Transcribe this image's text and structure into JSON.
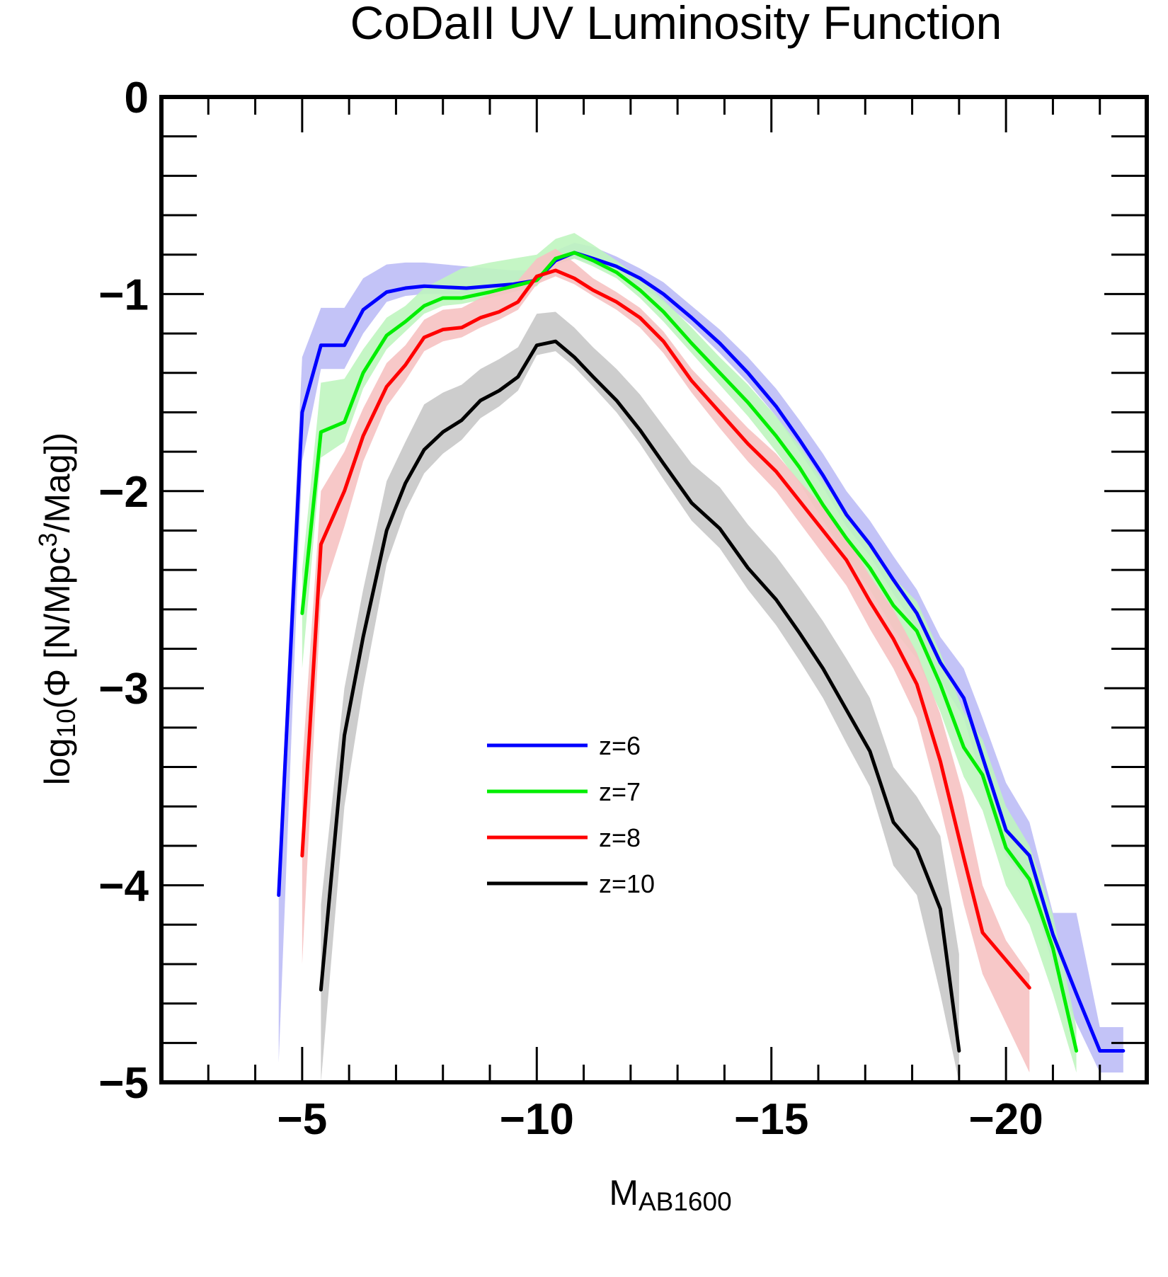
{
  "chart_data": {
    "type": "line",
    "title": "CoDaII UV Luminosity Function",
    "xlabel": {
      "main": "M",
      "sub": "AB1600"
    },
    "ylabel": {
      "pre": "log",
      "sub": "10",
      "mid": "(Φ [N/Mpc",
      "sup": "3",
      "post": "/Mag])"
    },
    "xlim": [
      -2,
      -23
    ],
    "ylim": [
      -5,
      0
    ],
    "xticks": [
      -5,
      -10,
      -15,
      -20
    ],
    "xtick_labels": [
      "−5",
      "−10",
      "−15",
      "−20"
    ],
    "yticks": [
      0,
      -1,
      -2,
      -3,
      -4,
      -5
    ],
    "ytick_labels": [
      "0",
      "−1",
      "−2",
      "−3",
      "−4",
      "−5"
    ],
    "series": [
      {
        "name": "z=6",
        "color": "#0000ff",
        "band_color": "#bcbcf6",
        "x": [
          -4.5,
          -5.0,
          -5.4,
          -5.9,
          -6.3,
          -6.8,
          -7.2,
          -7.6,
          -8.5,
          -9.5,
          -10.0,
          -10.4,
          -10.8,
          -11.2,
          -11.7,
          -12.2,
          -12.7,
          -13.3,
          -13.9,
          -14.5,
          -15.1,
          -15.6,
          -16.1,
          -16.6,
          -17.1,
          -17.6,
          -18.1,
          -18.6,
          -19.1,
          -19.5,
          -20.0,
          -20.5,
          -21.0,
          -21.5,
          -22.0,
          -22.5
        ],
        "y": [
          -4.05,
          -1.6,
          -1.26,
          -1.26,
          -1.08,
          -0.99,
          -0.97,
          -0.96,
          -0.97,
          -0.95,
          -0.93,
          -0.83,
          -0.79,
          -0.82,
          -0.86,
          -0.92,
          -1.0,
          -1.12,
          -1.25,
          -1.4,
          -1.57,
          -1.74,
          -1.92,
          -2.12,
          -2.27,
          -2.45,
          -2.62,
          -2.87,
          -3.05,
          -3.35,
          -3.72,
          -3.85,
          -4.25,
          -4.55,
          -4.84,
          -4.84
        ],
        "lower": [
          -4.9,
          -1.85,
          -1.38,
          -1.38,
          -1.2,
          -1.04,
          -1.01,
          -1.0,
          -1.0,
          -0.98,
          -0.95,
          -0.85,
          -0.82,
          -0.85,
          -0.9,
          -0.96,
          -1.04,
          -1.16,
          -1.3,
          -1.45,
          -1.62,
          -1.8,
          -1.98,
          -2.18,
          -2.33,
          -2.52,
          -2.7,
          -2.96,
          -3.15,
          -3.48,
          -3.85,
          -4.0,
          -4.4,
          -4.7,
          -4.95,
          -4.95
        ],
        "upper": [
          -3.9,
          -1.32,
          -1.07,
          -1.07,
          -0.92,
          -0.85,
          -0.84,
          -0.84,
          -0.86,
          -0.88,
          -0.88,
          -0.78,
          -0.74,
          -0.76,
          -0.81,
          -0.87,
          -0.94,
          -1.06,
          -1.18,
          -1.32,
          -1.48,
          -1.64,
          -1.81,
          -2.0,
          -2.15,
          -2.33,
          -2.5,
          -2.74,
          -2.9,
          -3.15,
          -3.48,
          -3.68,
          -4.14,
          -4.14,
          -4.72,
          -4.72
        ]
      },
      {
        "name": "z=7",
        "color": "#00ee00",
        "band_color": "#bff5bf",
        "x": [
          -5.0,
          -5.4,
          -5.9,
          -6.3,
          -6.8,
          -7.2,
          -7.6,
          -8.0,
          -8.4,
          -9.0,
          -9.5,
          -10.0,
          -10.4,
          -10.8,
          -11.2,
          -11.7,
          -12.2,
          -12.7,
          -13.3,
          -13.9,
          -14.5,
          -15.1,
          -15.6,
          -16.1,
          -16.6,
          -17.1,
          -17.6,
          -18.1,
          -18.6,
          -19.1,
          -19.5,
          -20.0,
          -20.5,
          -21.0,
          -21.5
        ],
        "y": [
          -2.62,
          -1.7,
          -1.65,
          -1.4,
          -1.21,
          -1.14,
          -1.06,
          -1.02,
          -1.02,
          -0.99,
          -0.96,
          -0.93,
          -0.82,
          -0.79,
          -0.83,
          -0.89,
          -0.98,
          -1.09,
          -1.25,
          -1.4,
          -1.55,
          -1.72,
          -1.88,
          -2.07,
          -2.24,
          -2.39,
          -2.58,
          -2.71,
          -2.98,
          -3.3,
          -3.44,
          -3.81,
          -3.97,
          -4.32,
          -4.84
        ],
        "lower": [
          -2.9,
          -1.83,
          -1.75,
          -1.48,
          -1.28,
          -1.19,
          -1.1,
          -1.06,
          -1.05,
          -1.02,
          -0.99,
          -0.96,
          -0.85,
          -0.82,
          -0.86,
          -0.92,
          -1.02,
          -1.14,
          -1.3,
          -1.46,
          -1.62,
          -1.8,
          -1.96,
          -2.15,
          -2.33,
          -2.5,
          -2.7,
          -2.85,
          -3.12,
          -3.45,
          -3.62,
          -4.0,
          -4.2,
          -4.55,
          -4.95
        ],
        "upper": [
          -2.4,
          -1.45,
          -1.43,
          -1.28,
          -1.12,
          -1.06,
          -0.97,
          -0.92,
          -0.87,
          -0.84,
          -0.82,
          -0.8,
          -0.72,
          -0.69,
          -0.75,
          -0.83,
          -0.92,
          -1.03,
          -1.17,
          -1.32,
          -1.46,
          -1.62,
          -1.77,
          -1.95,
          -2.12,
          -2.26,
          -2.44,
          -2.56,
          -2.82,
          -3.12,
          -3.26,
          -3.6,
          -3.8,
          -4.15,
          -4.72
        ]
      },
      {
        "name": "z=8",
        "color": "#ff0000",
        "band_color": "#f6c2c2",
        "x": [
          -5.0,
          -5.4,
          -5.9,
          -6.3,
          -6.8,
          -7.2,
          -7.6,
          -8.0,
          -8.4,
          -8.8,
          -9.2,
          -9.6,
          -10.0,
          -10.4,
          -10.8,
          -11.2,
          -11.7,
          -12.2,
          -12.7,
          -13.3,
          -13.9,
          -14.5,
          -15.1,
          -15.6,
          -16.1,
          -16.6,
          -17.1,
          -17.6,
          -18.1,
          -18.6,
          -19.1,
          -19.5,
          -20.0,
          -20.5
        ],
        "y": [
          -3.85,
          -2.27,
          -2.0,
          -1.72,
          -1.47,
          -1.36,
          -1.22,
          -1.18,
          -1.17,
          -1.12,
          -1.09,
          -1.04,
          -0.91,
          -0.88,
          -0.92,
          -0.98,
          -1.04,
          -1.12,
          -1.24,
          -1.44,
          -1.6,
          -1.76,
          -1.9,
          -2.05,
          -2.2,
          -2.35,
          -2.56,
          -2.75,
          -2.98,
          -3.37,
          -3.86,
          -4.24,
          -4.38,
          -4.52
        ],
        "lower": [
          -4.4,
          -2.55,
          -2.18,
          -1.85,
          -1.57,
          -1.44,
          -1.29,
          -1.24,
          -1.22,
          -1.17,
          -1.13,
          -1.08,
          -0.95,
          -0.91,
          -0.95,
          -1.01,
          -1.08,
          -1.17,
          -1.3,
          -1.5,
          -1.68,
          -1.85,
          -2.0,
          -2.16,
          -2.32,
          -2.48,
          -2.7,
          -2.9,
          -3.15,
          -3.6,
          -4.1,
          -4.45,
          -4.7,
          -4.95
        ],
        "upper": [
          -3.4,
          -2.0,
          -1.8,
          -1.58,
          -1.35,
          -1.26,
          -1.13,
          -1.08,
          -1.07,
          -1.02,
          -0.98,
          -0.93,
          -0.82,
          -0.77,
          -0.84,
          -0.92,
          -0.99,
          -1.07,
          -1.19,
          -1.38,
          -1.53,
          -1.68,
          -1.81,
          -1.95,
          -2.08,
          -2.23,
          -2.43,
          -2.6,
          -2.82,
          -3.13,
          -3.55,
          -4.0,
          -4.28,
          -4.45
        ]
      },
      {
        "name": "z=10",
        "color": "#000000",
        "band_color": "#c8c8c8",
        "x": [
          -5.4,
          -5.9,
          -6.3,
          -6.8,
          -7.2,
          -7.6,
          -8.0,
          -8.4,
          -8.8,
          -9.2,
          -9.6,
          -10.0,
          -10.4,
          -10.8,
          -11.2,
          -11.7,
          -12.2,
          -12.7,
          -13.3,
          -13.9,
          -14.5,
          -15.1,
          -15.6,
          -16.1,
          -16.6,
          -17.1,
          -17.6,
          -18.1,
          -18.6,
          -19.0
        ],
        "y": [
          -4.53,
          -3.24,
          -2.74,
          -2.2,
          -1.96,
          -1.79,
          -1.7,
          -1.64,
          -1.54,
          -1.49,
          -1.42,
          -1.26,
          -1.24,
          -1.32,
          -1.42,
          -1.54,
          -1.69,
          -1.86,
          -2.06,
          -2.19,
          -2.39,
          -2.55,
          -2.72,
          -2.9,
          -3.11,
          -3.32,
          -3.68,
          -3.82,
          -4.12,
          -4.84
        ],
        "lower": [
          -5.0,
          -3.6,
          -3.0,
          -2.37,
          -2.1,
          -1.91,
          -1.81,
          -1.74,
          -1.63,
          -1.57,
          -1.49,
          -1.31,
          -1.29,
          -1.37,
          -1.47,
          -1.6,
          -1.76,
          -1.94,
          -2.15,
          -2.29,
          -2.5,
          -2.68,
          -2.86,
          -3.05,
          -3.28,
          -3.5,
          -3.9,
          -4.05,
          -4.55,
          -5.0
        ],
        "upper": [
          -4.1,
          -3.0,
          -2.5,
          -1.95,
          -1.75,
          -1.56,
          -1.5,
          -1.46,
          -1.38,
          -1.33,
          -1.27,
          -1.1,
          -1.09,
          -1.17,
          -1.27,
          -1.38,
          -1.51,
          -1.67,
          -1.86,
          -1.98,
          -2.17,
          -2.33,
          -2.49,
          -2.66,
          -2.85,
          -3.05,
          -3.4,
          -3.55,
          -3.75,
          -4.35
        ]
      }
    ],
    "legend": {
      "position": "center",
      "entries": [
        "z=6",
        "z=7",
        "z=8",
        "z=10"
      ]
    }
  }
}
